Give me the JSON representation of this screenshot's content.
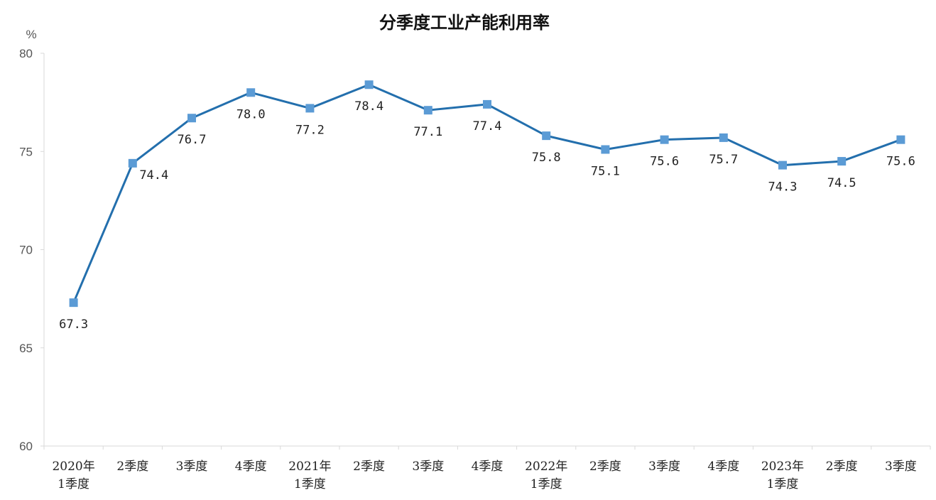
{
  "chart_data": {
    "type": "line",
    "title": "分季度工业产能利用率",
    "ylabel": "%",
    "xlabel": "",
    "ylim": [
      60,
      80
    ],
    "yticks": [
      60,
      65,
      70,
      75,
      80
    ],
    "grid": false,
    "categories": [
      [
        "2020年",
        "1季度"
      ],
      [
        "2季度"
      ],
      [
        "3季度"
      ],
      [
        "4季度"
      ],
      [
        "2021年",
        "1季度"
      ],
      [
        "2季度"
      ],
      [
        "3季度"
      ],
      [
        "4季度"
      ],
      [
        "2022年",
        "1季度"
      ],
      [
        "2季度"
      ],
      [
        "3季度"
      ],
      [
        "4季度"
      ],
      [
        "2023年",
        "1季度"
      ],
      [
        "2季度"
      ],
      [
        "3季度"
      ]
    ],
    "series": [
      {
        "values": [
          67.3,
          74.4,
          76.7,
          78.0,
          77.2,
          78.4,
          77.1,
          77.4,
          75.8,
          75.1,
          75.6,
          75.7,
          74.3,
          74.5,
          75.6
        ],
        "labels": [
          "67.3",
          "74.4",
          "76.7",
          "78.0",
          "77.2",
          "78.4",
          "77.1",
          "77.4",
          "75.8",
          "75.1",
          "75.6",
          "75.7",
          "74.3",
          "74.5",
          "75.6"
        ],
        "line_color": "#236fad",
        "marker_color": "#5b9bd5",
        "marker": "square"
      }
    ]
  }
}
